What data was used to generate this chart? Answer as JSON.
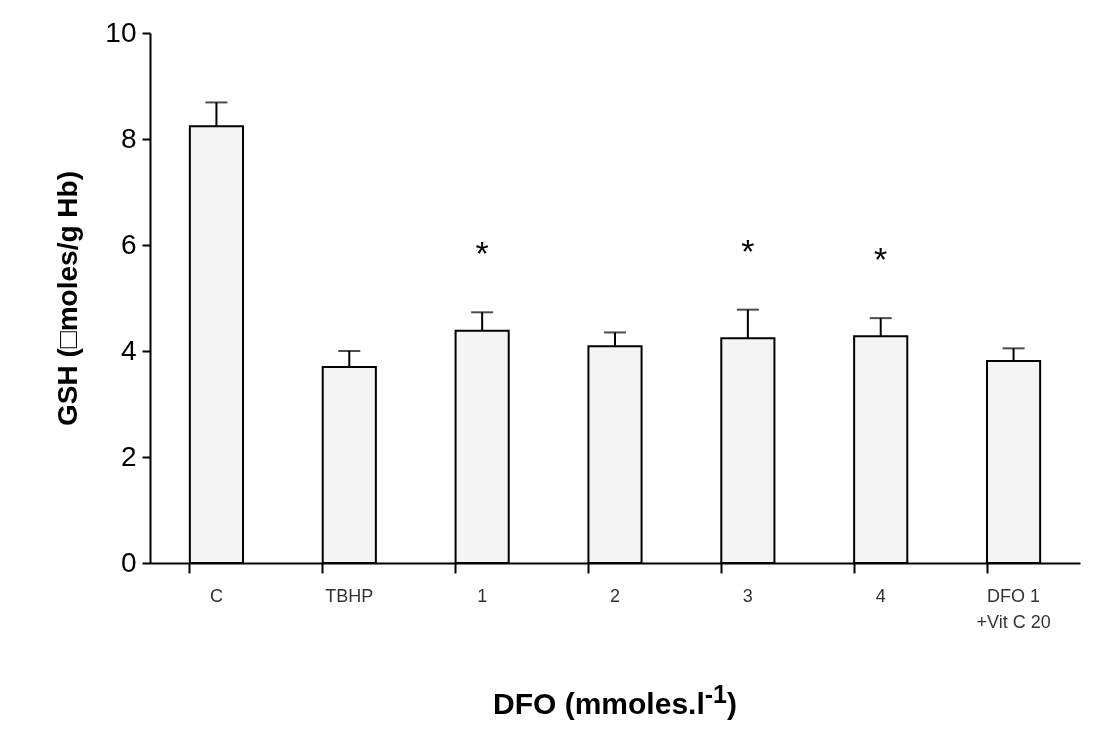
{
  "chart_data": {
    "type": "bar",
    "xlabel": "DFO (mmoles.l$^{-1}$)",
    "ylabel": "GSH (□moles/g Hb)",
    "categories": [
      "C",
      "TBHP",
      "1",
      "2",
      "3",
      "4",
      "DFO 1\n+Vit C 20"
    ],
    "values": [
      8.24,
      3.7,
      4.38,
      4.09,
      4.24,
      4.28,
      3.81
    ],
    "errors": [
      [
        8.24,
        8.69
      ],
      [
        3.7,
        4.0
      ],
      [
        4.38,
        4.73
      ],
      [
        4.09,
        4.35
      ],
      [
        4.24,
        4.78
      ],
      [
        4.28,
        4.62
      ],
      [
        3.81,
        4.05
      ]
    ],
    "color": "#f4f4f4",
    "ylim": [
      0,
      10
    ],
    "yticks": [
      0,
      2,
      4,
      6,
      8,
      10
    ],
    "value_labels": [
      null,
      null,
      "*",
      null,
      "*",
      "*",
      null
    ],
    "grid": false
  }
}
